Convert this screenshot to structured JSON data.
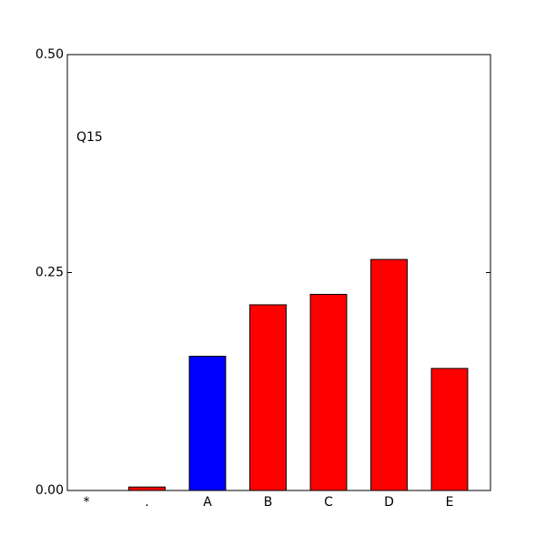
{
  "chart_data": {
    "type": "bar",
    "annotation": "Q15",
    "categories": [
      "*",
      ".",
      "A",
      "B",
      "C",
      "D",
      "E"
    ],
    "values": [
      0,
      0.004,
      0.154,
      0.213,
      0.225,
      0.265,
      0.14
    ],
    "colors": [
      "#ff0000",
      "#ff0000",
      "#0000ff",
      "#ff0000",
      "#ff0000",
      "#ff0000",
      "#ff0000"
    ],
    "ylim": [
      0,
      0.5
    ],
    "yticks": [
      {
        "value": 0,
        "label": "0.00"
      },
      {
        "value": 0.25,
        "label": "0.25"
      },
      {
        "value": 0.5,
        "label": "0.50"
      }
    ],
    "grid": false
  }
}
